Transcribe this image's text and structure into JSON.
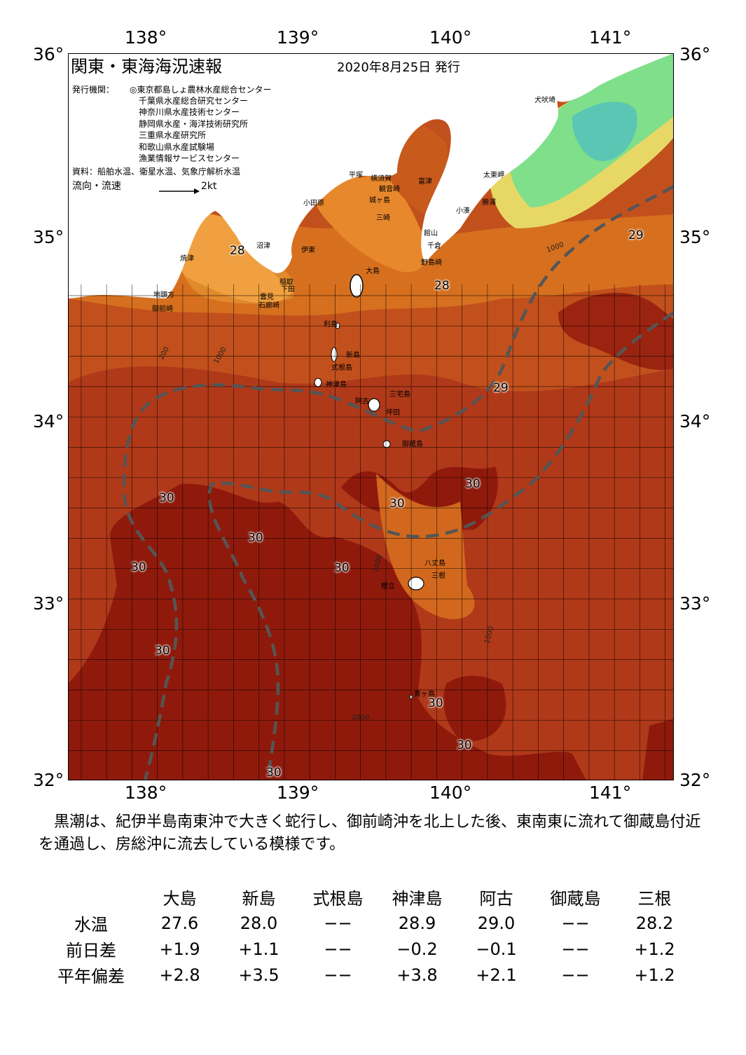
{
  "map": {
    "title": "関東・東海海況速報",
    "issue_date": "2020年8月25日 発行",
    "publisher_label": "発行機関：",
    "publishers": [
      "◎東京都島しょ農林水産総合センター",
      "千葉県水産総合研究センター",
      "神奈川県水産技術センター",
      "静岡県水産・海洋技術研究所",
      "三重県水産研究所",
      "和歌山県水産試験場",
      "漁業情報サービスセンター"
    ],
    "source_text": "資料：船舶水温、衛星水温、気象庁解析水温",
    "current_legend_label": "流向・流速",
    "current_legend_value": "2kt",
    "lon_labels": [
      "138°",
      "139°",
      "140°",
      "141°"
    ],
    "lat_labels": [
      "36°",
      "35°",
      "34°",
      "33°",
      "32°"
    ],
    "temperature_labels": [
      "28",
      "28",
      "29",
      "29",
      "30",
      "30",
      "30",
      "30",
      "30",
      "30",
      "30",
      "30",
      "30",
      "30"
    ],
    "place_names": {
      "inubosaki": "犬吠埼",
      "taitomisaki": "太東岬",
      "katsuura": "勝浦",
      "kominato": "小湊",
      "futtsu": "富津",
      "tateyama": "館山",
      "chikura": "千倉",
      "nojimazaki": "野島崎",
      "yokosuka": "横須賀",
      "kannonzaki": "観音崎",
      "hiratsuka": "平塚",
      "odawara": "小田原",
      "jogashima": "城ヶ島",
      "misaki": "三崎",
      "numazu": "沼津",
      "ito": "伊東",
      "inatori": "稲取",
      "yaizu": "焼津",
      "shimoda": "下田",
      "mera": "雲見",
      "irozaki": "石廊崎",
      "jitokata": "地頭方",
      "omaezaki": "御前崎",
      "oshima": "大島",
      "toshima": "利島",
      "niijima": "新島",
      "shikinejima": "式根島",
      "kozushima": "神津島",
      "miyakejima": "三宅島",
      "ako": "阿古",
      "tsubota": "坪田",
      "mikurajima": "御蔵島",
      "hachijojima": "八丈島",
      "mitsune": "三根",
      "kashitate": "樫立",
      "aogashima": "青ヶ島"
    },
    "depth_labels": [
      "1000",
      "2000",
      "200"
    ],
    "colors": {
      "land": "#ffffff",
      "sea_28": "#f3a53d",
      "sea_28b": "#e8882c",
      "sea_29": "#c4501a",
      "sea_29b": "#b43a16",
      "sea_30": "#8f1a0c",
      "cold_green": "#7ee08a",
      "cold_yellow": "#e8e070",
      "kuroshio": "#555555"
    }
  },
  "description": "黒潮は、紀伊半島南東沖で大きく蛇行し、御前崎沖を北上した後、東南東に流れて御蔵島付近を通過し、房総沖に流去している模様です。",
  "table": {
    "columns": [
      "大島",
      "新島",
      "式根島",
      "神津島",
      "阿古",
      "御蔵島",
      "三根"
    ],
    "rows": [
      {
        "label": "水温",
        "values": [
          "27.6",
          "28.0",
          "−−",
          "28.9",
          "29.0",
          "−−",
          "28.2"
        ]
      },
      {
        "label": "前日差",
        "values": [
          "+1.9",
          "+1.1",
          "−−",
          "−0.2",
          "−0.1",
          "−−",
          "+1.2"
        ]
      },
      {
        "label": "平年偏差",
        "values": [
          "+2.8",
          "+3.5",
          "−−",
          "+3.8",
          "+2.1",
          "−−",
          "+1.2"
        ]
      }
    ]
  }
}
